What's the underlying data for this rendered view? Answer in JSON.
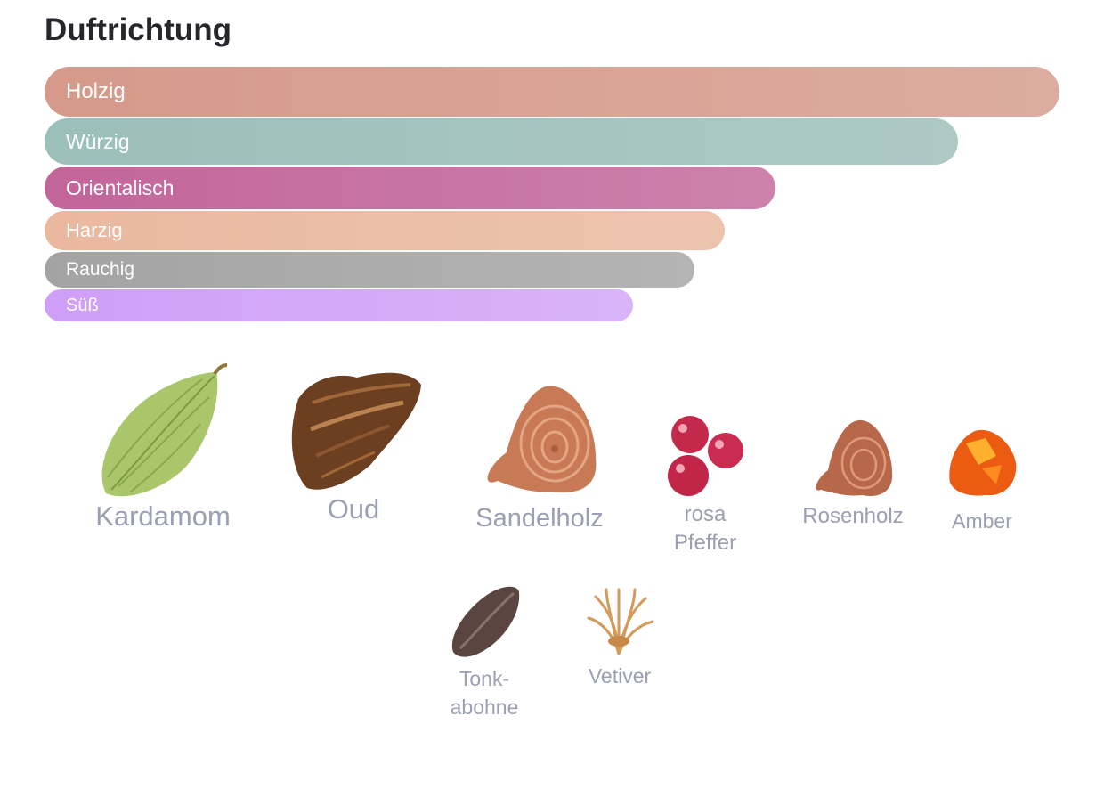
{
  "title": "Duftrichtung",
  "accords": [
    {
      "label": "Holzig",
      "strength": 1.0,
      "color_start": "#d6998a",
      "color_end": "#dcaca0"
    },
    {
      "label": "Würzig",
      "strength": 0.9,
      "color_start": "#9bbfb9",
      "color_end": "#aec9c4"
    },
    {
      "label": "Orientalisch",
      "strength": 0.72,
      "color_start": "#c2659a",
      "color_end": "#cc82ab"
    },
    {
      "label": "Harzig",
      "strength": 0.67,
      "color_start": "#eab89e",
      "color_end": "#ecc4ae"
    },
    {
      "label": "Rauchig",
      "strength": 0.64,
      "color_start": "#a3a3a3",
      "color_end": "#b4b4b4"
    },
    {
      "label": "Süß",
      "strength": 0.58,
      "color_start": "#cf9ef7",
      "color_end": "#d9b4f9"
    }
  ],
  "notes": [
    {
      "label": "Kardamom",
      "icon": "cardamom-icon"
    },
    {
      "label": "Oud",
      "icon": "oud-icon"
    },
    {
      "label": "Sandelholz",
      "icon": "sandalwood-icon"
    },
    {
      "label": "rosa Pfeffer",
      "icon": "pink-pepper-icon"
    },
    {
      "label": "Rosenholz",
      "icon": "rosewood-icon"
    },
    {
      "label": "Amber",
      "icon": "amber-icon"
    },
    {
      "label": "Tonk­abohne",
      "icon": "tonka-bean-icon"
    },
    {
      "label": "Vetiver",
      "icon": "vetiver-icon"
    }
  ]
}
